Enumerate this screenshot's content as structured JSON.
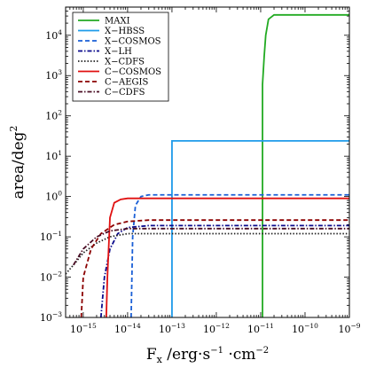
{
  "chart_data": {
    "type": "line",
    "xlabel": "F_x /erg·s⁻¹ ·cm⁻²",
    "ylabel": "area/deg²",
    "x_scale": "log",
    "y_scale": "log",
    "xlim": [
      4e-16,
      1e-09
    ],
    "ylim": [
      0.001,
      50000
    ],
    "x_ticks": [
      1e-15,
      1e-14,
      1e-13,
      1e-12,
      1e-11,
      1e-10,
      1e-09
    ],
    "y_ticks": [
      0.001,
      0.01,
      0.1,
      1,
      10,
      100,
      1000,
      10000
    ],
    "legend_position": "top-left",
    "series": [
      {
        "name": "MAXI",
        "color": "#22aa22",
        "style": "solid",
        "points": [
          [
            1.1e-11,
            0.001
          ],
          [
            1.1e-11,
            600
          ],
          [
            1.2e-11,
            3000
          ],
          [
            1.3e-11,
            10000
          ],
          [
            1.5e-11,
            25000
          ],
          [
            2e-11,
            32000
          ],
          [
            1e-09,
            32000
          ]
        ]
      },
      {
        "name": "X−HBSS",
        "color": "#1e9bea",
        "style": "solid",
        "points": [
          [
            1e-13,
            0.001
          ],
          [
            1e-13,
            24
          ],
          [
            1e-09,
            24
          ]
        ]
      },
      {
        "name": "X−COSMOS",
        "color": "#1a5fd6",
        "style": "dashed",
        "points": [
          [
            1.2e-14,
            0.001
          ],
          [
            1.3e-14,
            0.1
          ],
          [
            1.5e-14,
            0.6
          ],
          [
            2e-14,
            1.0
          ],
          [
            3e-14,
            1.1
          ],
          [
            1e-09,
            1.1
          ]
        ]
      },
      {
        "name": "X−LH",
        "color": "#0a0a8c",
        "style": "dashdot",
        "points": [
          [
            2.5e-15,
            0.001
          ],
          [
            3e-15,
            0.01
          ],
          [
            4e-15,
            0.05
          ],
          [
            6e-15,
            0.12
          ],
          [
            1e-14,
            0.17
          ],
          [
            3e-14,
            0.19
          ],
          [
            1e-09,
            0.19
          ]
        ]
      },
      {
        "name": "X−CDFS",
        "color": "#222222",
        "style": "dotted",
        "points": [
          [
            4e-16,
            0.012
          ],
          [
            6e-16,
            0.02
          ],
          [
            1e-15,
            0.04
          ],
          [
            2e-15,
            0.07
          ],
          [
            4e-15,
            0.1
          ],
          [
            1e-14,
            0.12
          ],
          [
            1e-09,
            0.12
          ]
        ]
      },
      {
        "name": "C−COSMOS",
        "color": "#e01010",
        "style": "solid",
        "points": [
          [
            3.3e-15,
            0.001
          ],
          [
            3.5e-15,
            0.01
          ],
          [
            4e-15,
            0.3
          ],
          [
            5e-15,
            0.7
          ],
          [
            7e-15,
            0.85
          ],
          [
            1e-14,
            0.9
          ],
          [
            1e-09,
            0.9
          ]
        ]
      },
      {
        "name": "C−AEGIS",
        "color": "#8b0000",
        "style": "dashed",
        "points": [
          [
            9e-16,
            0.001
          ],
          [
            1e-15,
            0.01
          ],
          [
            1.5e-15,
            0.05
          ],
          [
            2.5e-15,
            0.12
          ],
          [
            5e-15,
            0.2
          ],
          [
            1e-14,
            0.24
          ],
          [
            3e-14,
            0.26
          ],
          [
            1e-09,
            0.26
          ]
        ]
      },
      {
        "name": "C−CDFS",
        "color": "#4a0d24",
        "style": "dashdot",
        "points": [
          [
            6e-16,
            0.02
          ],
          [
            1e-15,
            0.05
          ],
          [
            2e-15,
            0.1
          ],
          [
            4e-15,
            0.14
          ],
          [
            1e-14,
            0.16
          ],
          [
            1e-09,
            0.16
          ]
        ]
      }
    ]
  }
}
